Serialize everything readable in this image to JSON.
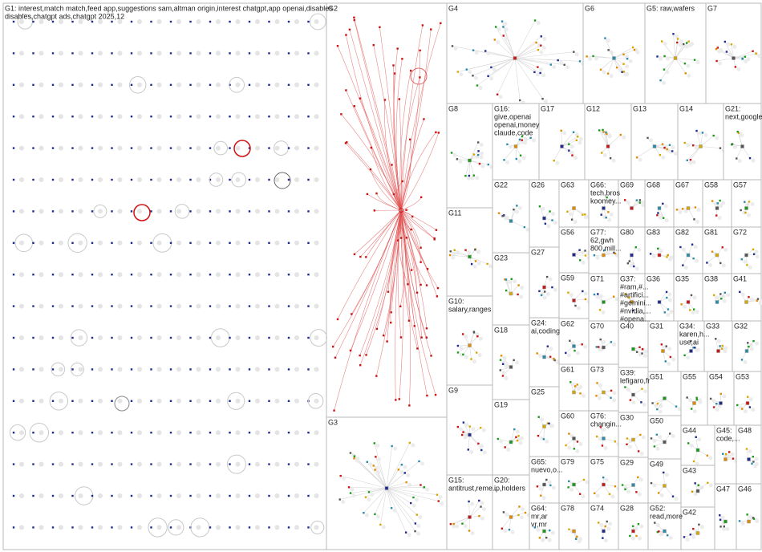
{
  "groups": [
    {
      "label": [
        "G1: interest,match  match,feed  app,suggestions  sam,altman  origin,interest  chatgpt,app  openai,disables",
        "disables,chatgpt  ads,chatgpt  2025,12"
      ]
    },
    {
      "label": [
        "G2"
      ]
    },
    {
      "label": [
        "G3"
      ]
    },
    {
      "label": [
        "G4"
      ]
    },
    {
      "label": [
        "G6"
      ]
    },
    {
      "label": [
        "G5: raw,wafers"
      ]
    },
    {
      "label": [
        "G7"
      ]
    },
    {
      "label": [
        "G8"
      ]
    },
    {
      "label": [
        "G16:",
        "give,openai",
        "openai,money",
        "claude,code"
      ]
    },
    {
      "label": [
        "G17"
      ]
    },
    {
      "label": [
        "G12"
      ]
    },
    {
      "label": [
        "G13"
      ]
    },
    {
      "label": [
        "G14"
      ]
    },
    {
      "label": [
        "G21:",
        "next,google"
      ]
    },
    {
      "label": [
        "G11"
      ]
    },
    {
      "label": [
        "G10:",
        "salary,ranges"
      ]
    },
    {
      "label": [
        "G9"
      ]
    },
    {
      "label": [
        "G15:",
        "antitrust,reme..."
      ]
    },
    {
      "label": [
        "G22"
      ]
    },
    {
      "label": [
        "G23"
      ]
    },
    {
      "label": [
        "G18"
      ]
    },
    {
      "label": [
        "G19"
      ]
    },
    {
      "label": [
        "G20:",
        "ip,holders"
      ]
    },
    {
      "label": [
        "G26"
      ]
    },
    {
      "label": [
        "G27"
      ]
    },
    {
      "label": [
        "G24:",
        "ai,coding"
      ]
    },
    {
      "label": [
        "G25"
      ]
    },
    {
      "label": [
        "G65:",
        "nuevo,o..."
      ]
    },
    {
      "label": [
        "G64:",
        "mr,ar",
        "vr,mr"
      ]
    },
    {
      "label": [
        "G63"
      ]
    },
    {
      "label": [
        "G56"
      ]
    },
    {
      "label": [
        "G59"
      ]
    },
    {
      "label": [
        "G62"
      ]
    },
    {
      "label": [
        "G61"
      ]
    },
    {
      "label": [
        "G60"
      ]
    },
    {
      "label": [
        "G79"
      ]
    },
    {
      "label": [
        "G78"
      ]
    },
    {
      "label": [
        "G66:",
        "tech,bros",
        "koomey..."
      ]
    },
    {
      "label": [
        "G69"
      ]
    },
    {
      "label": [
        "G68"
      ]
    },
    {
      "label": [
        "G67"
      ]
    },
    {
      "label": [
        "G58"
      ]
    },
    {
      "label": [
        "G57"
      ]
    },
    {
      "label": [
        "G77:",
        "62,gwh",
        "800,mill..."
      ]
    },
    {
      "label": [
        "G80"
      ]
    },
    {
      "label": [
        "G83"
      ]
    },
    {
      "label": [
        "G82"
      ]
    },
    {
      "label": [
        "G81"
      ]
    },
    {
      "label": [
        "G72"
      ]
    },
    {
      "label": [
        "G71"
      ]
    },
    {
      "label": [
        "G37:",
        "#ram,#...",
        "#artifici...",
        "#gemini...",
        "#nvidia,...",
        "#opena..."
      ]
    },
    {
      "label": [
        "G36"
      ]
    },
    {
      "label": [
        "G35"
      ]
    },
    {
      "label": [
        "G38"
      ]
    },
    {
      "label": [
        "G41"
      ]
    },
    {
      "label": [
        "G70"
      ]
    },
    {
      "label": [
        "G40"
      ]
    },
    {
      "label": [
        "G31"
      ]
    },
    {
      "label": [
        "G34:",
        "karen,h...",
        "use,ai"
      ]
    },
    {
      "label": [
        "G33"
      ]
    },
    {
      "label": [
        "G32"
      ]
    },
    {
      "label": [
        "G73"
      ]
    },
    {
      "label": [
        "G39:",
        "lefigaro,fr"
      ]
    },
    {
      "label": [
        "G51"
      ]
    },
    {
      "label": [
        "G55"
      ]
    },
    {
      "label": [
        "G54"
      ]
    },
    {
      "label": [
        "G53"
      ]
    },
    {
      "label": [
        "G76:",
        "changin..."
      ]
    },
    {
      "label": [
        "G30"
      ]
    },
    {
      "label": [
        "G50"
      ]
    },
    {
      "label": [
        "G44"
      ]
    },
    {
      "label": [
        "G45:",
        "code,..."
      ]
    },
    {
      "label": [
        "G48"
      ]
    },
    {
      "label": [
        "G75"
      ]
    },
    {
      "label": [
        "G29"
      ]
    },
    {
      "label": [
        "G49"
      ]
    },
    {
      "label": [
        "G43"
      ]
    },
    {
      "label": [
        "G47"
      ]
    },
    {
      "label": [
        "G46"
      ]
    },
    {
      "label": [
        "G74"
      ]
    },
    {
      "label": [
        "G28"
      ]
    },
    {
      "label": [
        "G52:",
        "read,more"
      ]
    },
    {
      "label": [
        "G42"
      ]
    }
  ]
}
